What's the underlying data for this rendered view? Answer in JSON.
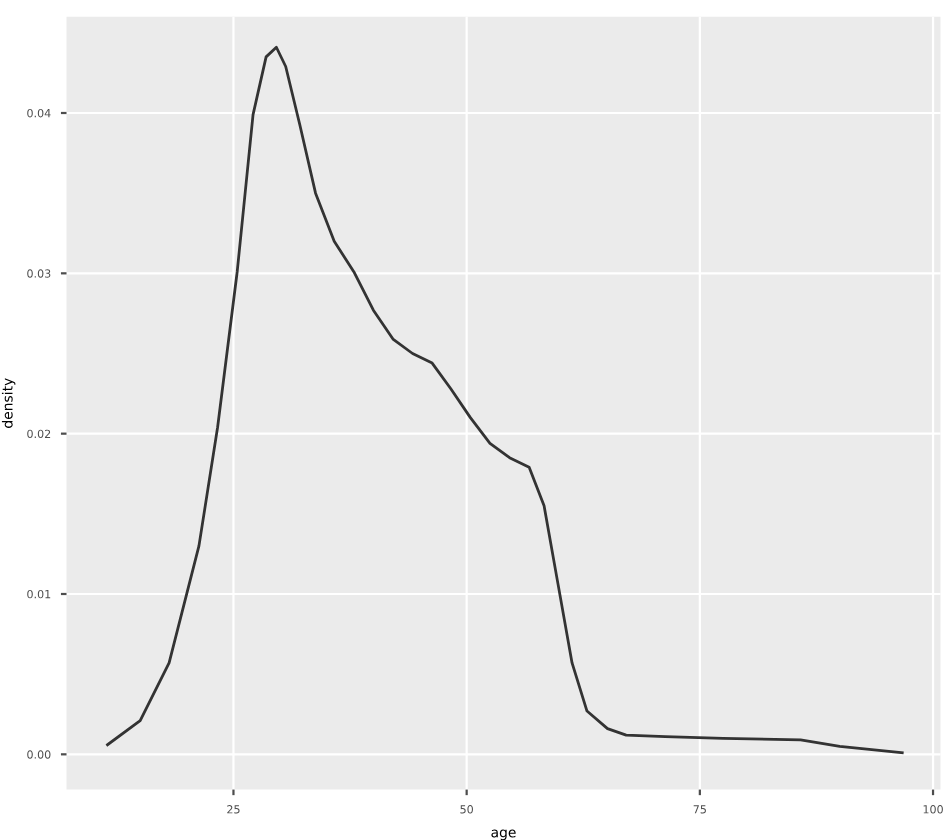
{
  "chart_data": {
    "type": "line",
    "xlabel": "age",
    "ylabel": "density",
    "x": [
      11.5,
      15,
      18.1,
      21.3,
      23.3,
      25.4,
      27.1,
      28.5,
      29.6,
      30.6,
      32.1,
      33.8,
      35.8,
      37.9,
      40,
      42.1,
      44.2,
      46.3,
      48.3,
      50.4,
      52.5,
      54.6,
      56.7,
      58.3,
      59.8,
      61.3,
      62.9,
      65.1,
      67.1,
      71.3,
      77.5,
      85.8,
      90,
      96.7
    ],
    "series": [
      {
        "color": "#333333",
        "values": [
          0.0006,
          0.0021,
          0.0057,
          0.013,
          0.0204,
          0.0301,
          0.0399,
          0.0435,
          0.0441,
          0.0429,
          0.0393,
          0.035,
          0.032,
          0.0301,
          0.0277,
          0.0259,
          0.025,
          0.0244,
          0.0228,
          0.021,
          0.0194,
          0.0185,
          0.0179,
          0.0155,
          0.0106,
          0.0057,
          0.0027,
          0.0016,
          0.0012,
          0.0011,
          0.001,
          0.0009,
          0.0005,
          0.0001
        ]
      }
    ],
    "xlim": [
      7.1,
      100.8
    ],
    "ylim": [
      -0.0022,
      0.046
    ],
    "xticks": [
      25,
      50,
      75,
      100
    ],
    "yticks": [
      {
        "value": 0,
        "label": "0.00"
      },
      {
        "value": 0.01,
        "label": "0.01"
      },
      {
        "value": 0.02,
        "label": "0.02"
      },
      {
        "value": 0.03,
        "label": "0.03"
      },
      {
        "value": 0.04,
        "label": "0.04"
      }
    ],
    "grid": true,
    "marker": "none",
    "line_style": "solid"
  }
}
